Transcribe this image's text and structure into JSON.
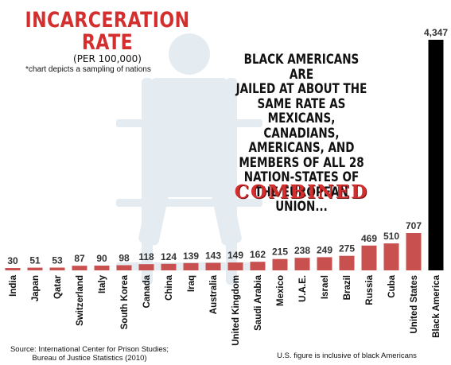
{
  "title_line1": "INCARCERATION",
  "title_line2": "RATE",
  "subtitle": "(PER 100,000)",
  "note": "*chart depicts a sampling of nations",
  "headline": "BLACK AMERICANS ARE\nJAILED AT ABOUT THE\nSAME RATE AS\nMEXICANS, CANADIANS,\nAMERICANS, AND\nMEMBERS OF ALL 28\nNATION-STATES OF\nTHE EUROPEAN UNION...",
  "combined": "COMBINED",
  "source": "Source: International Center for Prison Studies; Bureau of Justice Statistics (2010)",
  "footnote": "U.S. figure is inclusive of black Americans",
  "colors": {
    "bar": "#c8504f",
    "highlight": "#000000",
    "title": "#d42f2f",
    "watermark": "#e4ecf2"
  },
  "chart_data": {
    "type": "bar",
    "title": "INCARCERATION RATE",
    "categories": [
      "India",
      "Japan",
      "Qatar",
      "Switzerland",
      "Italy",
      "South Korea",
      "Canada",
      "China",
      "Iraq",
      "Australia",
      "United Kingdom",
      "Saudi Arabia",
      "Mexico",
      "U.A.E.",
      "Israel",
      "Brazil",
      "Russia",
      "Cuba",
      "United States",
      "Black America"
    ],
    "values": [
      30,
      51,
      53,
      87,
      90,
      98,
      118,
      124,
      139,
      143,
      149,
      162,
      215,
      238,
      249,
      275,
      469,
      510,
      707,
      4347
    ],
    "value_labels": [
      "30",
      "51",
      "53",
      "87",
      "90",
      "98",
      "118",
      "124",
      "139",
      "143",
      "149",
      "162",
      "215",
      "238",
      "249",
      "275",
      "469",
      "510",
      "707",
      "4,347"
    ],
    "highlight_category": "Black America",
    "ylim": [
      0,
      4347
    ],
    "grid": false,
    "legend": "none"
  }
}
